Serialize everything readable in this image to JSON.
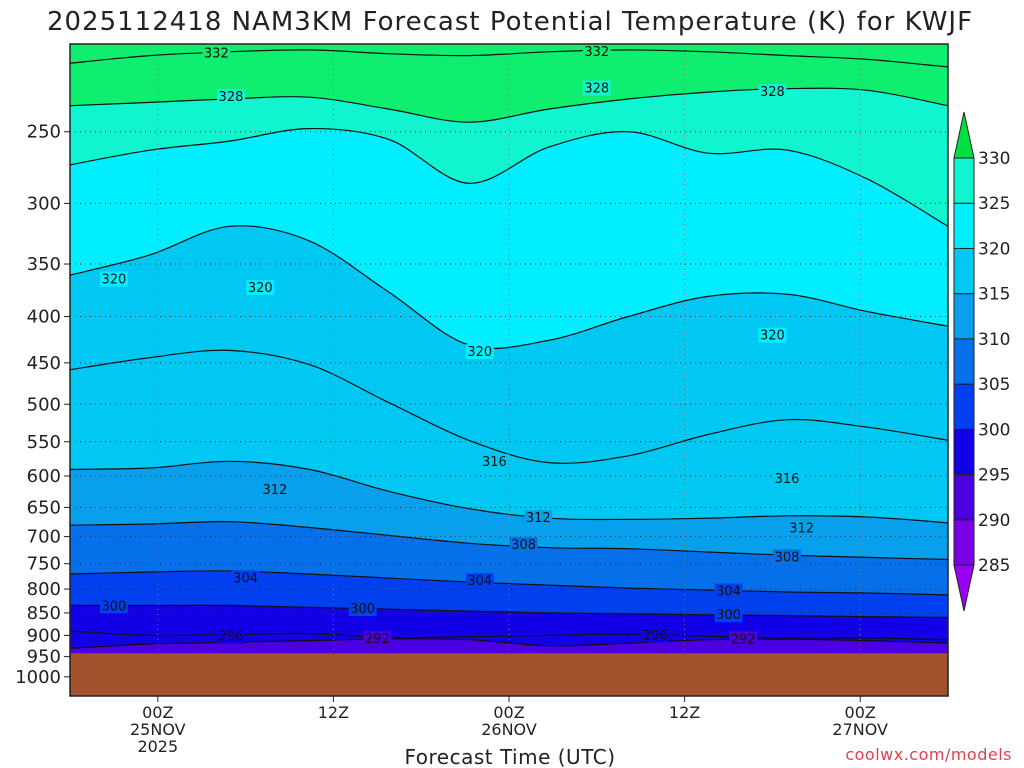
{
  "chart_data": {
    "type": "heatmap",
    "title": "2025112418 NAM3KM Forecast Potential Temperature (K) for KWJF",
    "xlabel": "Forecast Time (UTC)",
    "ylabel": "",
    "x_ticks": [
      {
        "hours": 6,
        "lines": [
          "00Z",
          "25NOV",
          "2025"
        ]
      },
      {
        "hours": 18,
        "lines": [
          "12Z"
        ]
      },
      {
        "hours": 30,
        "lines": [
          "00Z",
          "26NOV"
        ]
      },
      {
        "hours": 42,
        "lines": [
          "12Z"
        ]
      },
      {
        "hours": 54,
        "lines": [
          "00Z",
          "27NOV"
        ]
      }
    ],
    "xlim_hours": [
      0,
      60
    ],
    "y_scale": "log-pressure",
    "ylim": [
      1050,
      200
    ],
    "y_ticks": [
      250,
      300,
      350,
      400,
      450,
      500,
      550,
      600,
      650,
      700,
      750,
      800,
      850,
      900,
      950,
      1000
    ],
    "surface_pressure": 942,
    "colorbar": {
      "ticks": [
        285,
        290,
        295,
        300,
        305,
        310,
        315,
        320,
        325,
        330
      ],
      "levels": [
        280,
        285,
        290,
        295,
        300,
        305,
        310,
        315,
        320,
        325,
        330,
        335
      ],
      "colors": [
        "#9a00f2",
        "#7a00e6",
        "#4b00e0",
        "#1200e6",
        "#0040ee",
        "#0670ea",
        "#08a0ec",
        "#00c8f2",
        "#00eeff",
        "#10f5d0",
        "#10ee70",
        "#00e040"
      ]
    },
    "contour_labels": [
      {
        "text": "332",
        "hours": 10,
        "p": 205
      },
      {
        "text": "332",
        "hours": 36,
        "p": 204
      },
      {
        "text": "328",
        "hours": 11,
        "p": 229
      },
      {
        "text": "328",
        "hours": 36,
        "p": 224
      },
      {
        "text": "328",
        "hours": 48,
        "p": 226
      },
      {
        "text": "320",
        "hours": 3,
        "p": 364
      },
      {
        "text": "320",
        "hours": 13,
        "p": 372
      },
      {
        "text": "320",
        "hours": 28,
        "p": 438
      },
      {
        "text": "320",
        "hours": 48,
        "p": 420
      },
      {
        "text": "316",
        "hours": 29,
        "p": 579
      },
      {
        "text": "316",
        "hours": 49,
        "p": 605
      },
      {
        "text": "312",
        "hours": 14,
        "p": 622
      },
      {
        "text": "312",
        "hours": 32,
        "p": 668
      },
      {
        "text": "312",
        "hours": 50,
        "p": 686
      },
      {
        "text": "308",
        "hours": 31,
        "p": 715
      },
      {
        "text": "308",
        "hours": 49,
        "p": 738
      },
      {
        "text": "304",
        "hours": 12,
        "p": 779
      },
      {
        "text": "304",
        "hours": 28,
        "p": 784
      },
      {
        "text": "304",
        "hours": 45,
        "p": 805
      },
      {
        "text": "300",
        "hours": 3,
        "p": 836
      },
      {
        "text": "300",
        "hours": 20,
        "p": 842
      },
      {
        "text": "300",
        "hours": 45,
        "p": 855
      },
      {
        "text": "296",
        "hours": 11,
        "p": 903
      },
      {
        "text": "296",
        "hours": 40,
        "p": 900
      },
      {
        "text": "292",
        "hours": 21,
        "p": 908
      },
      {
        "text": "292",
        "hours": 46,
        "p": 909
      }
    ],
    "isentropes": [
      {
        "theta": 332,
        "p": [
          210,
          206,
          204,
          203,
          205,
          206,
          204,
          203,
          204,
          206,
          208,
          212
        ]
      },
      {
        "theta": 328,
        "p": [
          234,
          232,
          230,
          229,
          236,
          244,
          236,
          230,
          226,
          224,
          225,
          234
        ]
      },
      {
        "theta": 324,
        "p": [
          272,
          262,
          256,
          248,
          255,
          285,
          260,
          250,
          264,
          262,
          282,
          318
        ]
      },
      {
        "theta": 320,
        "p": [
          360,
          342,
          318,
          330,
          376,
          430,
          425,
          400,
          380,
          378,
          395,
          410
        ]
      },
      {
        "theta": 316,
        "p": [
          458,
          444,
          436,
          452,
          498,
          548,
          580,
          570,
          540,
          520,
          530,
          548
        ]
      },
      {
        "theta": 312,
        "p": [
          590,
          588,
          578,
          590,
          624,
          652,
          668,
          670,
          668,
          664,
          666,
          676
        ]
      },
      {
        "theta": 308,
        "p": [
          680,
          678,
          674,
          684,
          698,
          712,
          720,
          722,
          728,
          734,
          738,
          742
        ]
      },
      {
        "theta": 304,
        "p": [
          770,
          766,
          764,
          770,
          778,
          786,
          792,
          798,
          802,
          806,
          808,
          812
        ]
      },
      {
        "theta": 300,
        "p": [
          834,
          834,
          834,
          838,
          842,
          846,
          850,
          852,
          854,
          856,
          858,
          860
        ]
      },
      {
        "theta": 296,
        "p": [
          890,
          900,
          898,
          896,
          905,
          903,
          900,
          897,
          902,
          906,
          906,
          910
        ]
      },
      {
        "theta": 292,
        "p": [
          930,
          920,
          916,
          912,
          908,
          910,
          924,
          918,
          910,
          909,
          912,
          918
        ]
      }
    ],
    "series_hours": [
      0,
      5.45,
      10.9,
      16.35,
      21.8,
      27.25,
      32.7,
      38.15,
      43.6,
      49.05,
      54.5,
      60
    ]
  },
  "credit": "coolwx.com/models"
}
